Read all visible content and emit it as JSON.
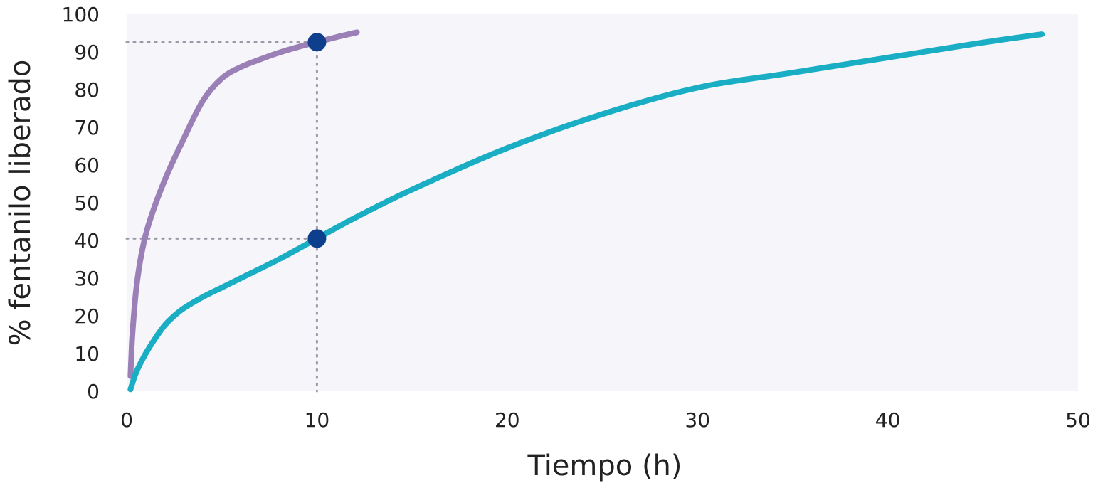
{
  "chart_data": {
    "type": "line",
    "title": "",
    "xlabel": "Tiempo (h)",
    "ylabel": "% fentanilo liberado",
    "xlim": [
      0,
      50
    ],
    "ylim": [
      0,
      100
    ],
    "x_ticks": [
      0,
      10,
      20,
      30,
      40,
      50
    ],
    "y_ticks": [
      0,
      10,
      20,
      30,
      40,
      50,
      60,
      70,
      80,
      90,
      100
    ],
    "grid": false,
    "plot_background": "#f5f5fa",
    "series": [
      {
        "color": "#9b80b8",
        "x": [
          0.2,
          0.25,
          0.3,
          0.5,
          0.8,
          1.2,
          2,
          3,
          4,
          5,
          6,
          7,
          8,
          9,
          10,
          11,
          12.1
        ],
        "y": [
          4,
          10,
          15,
          27,
          37,
          45,
          56,
          67,
          77,
          83,
          86,
          88,
          89.8,
          91.3,
          92.6,
          93.9,
          95.2
        ]
      },
      {
        "color": "#1aaec4",
        "x": [
          0.2,
          0.5,
          1,
          1.5,
          2,
          2.5,
          3,
          4,
          5,
          6,
          8,
          10,
          12,
          15,
          20,
          25,
          30,
          35,
          40,
          45,
          48.1
        ],
        "y": [
          0.5,
          5,
          10,
          14,
          17.5,
          20,
          22,
          25,
          27.5,
          30,
          35,
          40.5,
          46,
          53.5,
          64.5,
          73.5,
          80.5,
          84.5,
          88.5,
          92.5,
          94.7
        ]
      }
    ],
    "markers": [
      {
        "x": 10,
        "y": 92.6,
        "color": "#0d3f8c"
      },
      {
        "x": 10,
        "y": 40.5,
        "color": "#0d3f8c"
      }
    ],
    "guide_color": "#9a9aa6"
  }
}
